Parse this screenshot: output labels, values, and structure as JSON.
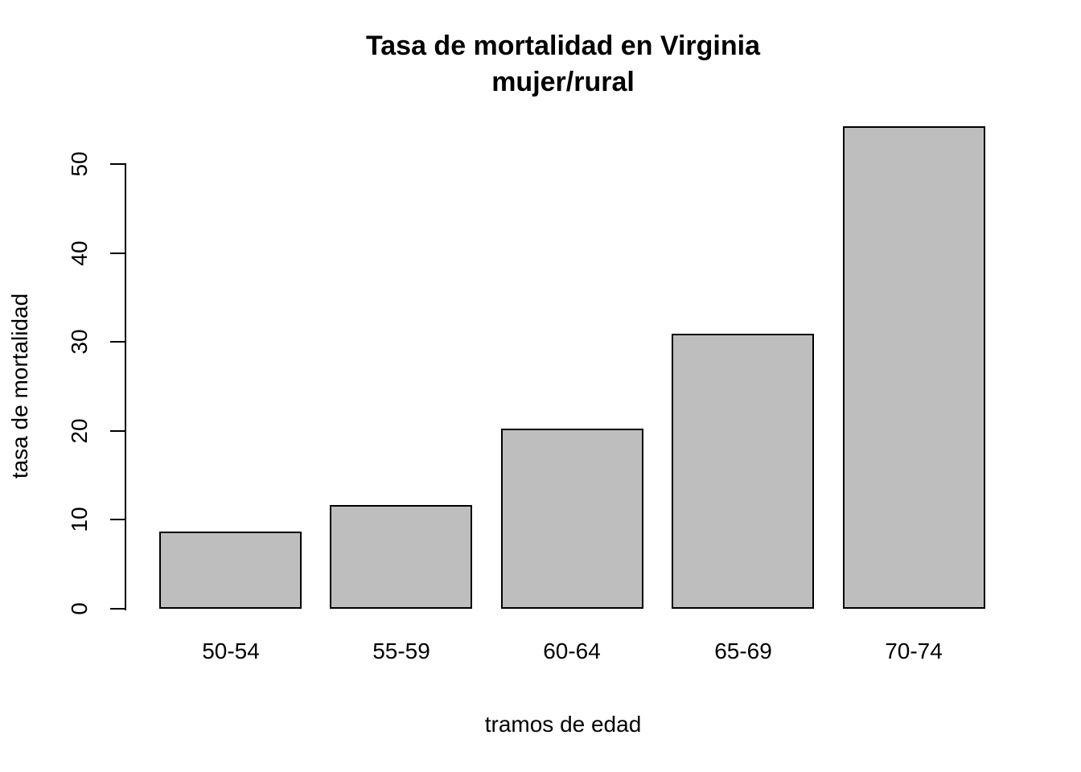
{
  "chart_data": {
    "type": "bar",
    "title": "Tasa de mortalidad en Virginia",
    "subtitle": "mujer/rural",
    "categories": [
      "50-54",
      "55-59",
      "60-64",
      "65-69",
      "70-74"
    ],
    "values": [
      8.7,
      11.7,
      20.3,
      30.9,
      54.3
    ],
    "xlabel": "tramos de edad",
    "ylabel": "tasa de mortalidad",
    "yticks": [
      0,
      10,
      20,
      30,
      40,
      50
    ],
    "ylim": [
      0,
      54.3
    ],
    "grid": false,
    "legend": null,
    "colors": {
      "bar_fill": "#bebebe",
      "bar_border": "#000000",
      "axis": "#000000",
      "text": "#000000",
      "background": "#ffffff"
    }
  }
}
